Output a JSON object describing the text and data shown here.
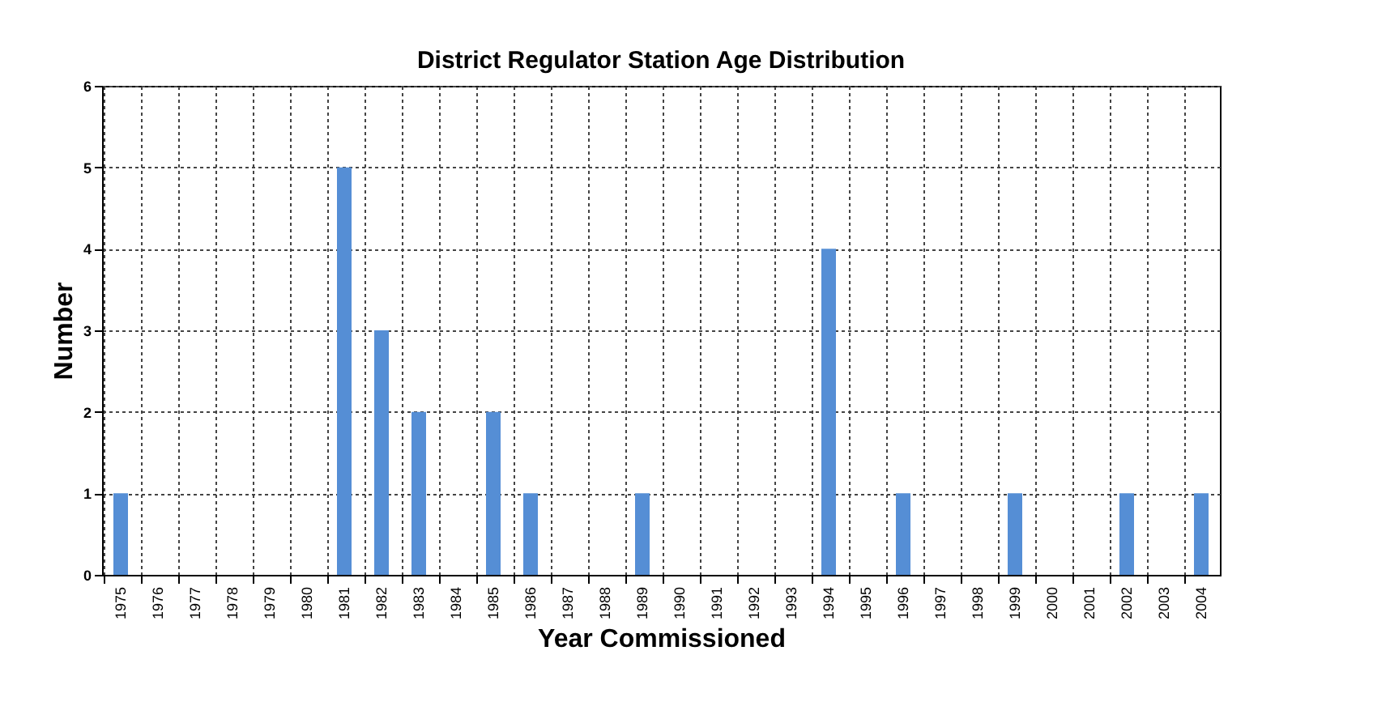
{
  "chart_data": {
    "type": "bar",
    "title": "District Regulator Station Age Distribution",
    "xlabel": "Year Commissioned",
    "ylabel": "Number",
    "categories": [
      "1975",
      "1976",
      "1977",
      "1978",
      "1979",
      "1980",
      "1981",
      "1982",
      "1983",
      "1984",
      "1985",
      "1986",
      "1987",
      "1988",
      "1989",
      "1990",
      "1991",
      "1992",
      "1993",
      "1994",
      "1995",
      "1996",
      "1997",
      "1998",
      "1999",
      "2000",
      "2001",
      "2002",
      "2003",
      "2004"
    ],
    "values": [
      1,
      0,
      0,
      0,
      0,
      0,
      5,
      3,
      2,
      0,
      2,
      1,
      0,
      0,
      1,
      0,
      0,
      0,
      0,
      4,
      0,
      1,
      0,
      0,
      1,
      0,
      0,
      1,
      0,
      1
    ],
    "color": "#558ed5",
    "ylim": [
      0,
      6
    ],
    "yticks": [
      0,
      1,
      2,
      3,
      4,
      5,
      6
    ],
    "grid": true
  }
}
